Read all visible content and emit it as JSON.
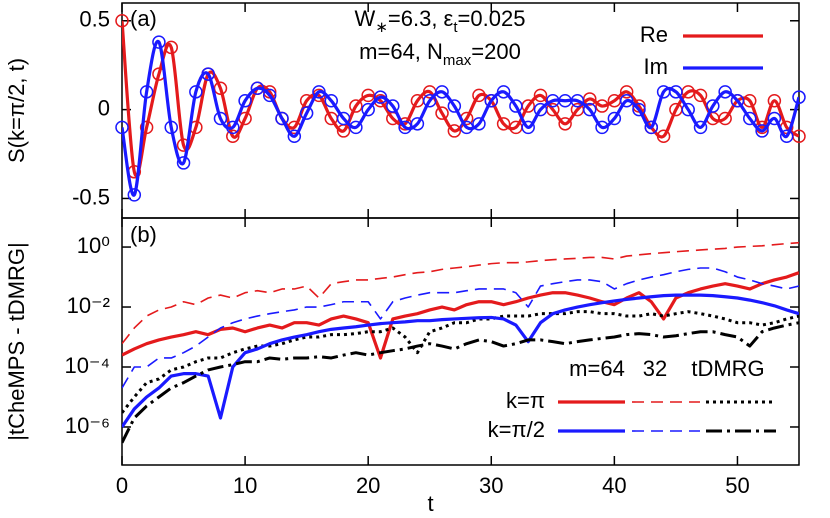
{
  "chart_data": [
    {
      "type": "line",
      "ylabel": "S(k=π/2, t)",
      "xlim": [
        0,
        55
      ],
      "ylim": [
        -0.61,
        0.6
      ],
      "yticks": [
        -0.5,
        0,
        0.5
      ],
      "xticks": [
        0,
        10,
        20,
        30,
        40,
        50
      ],
      "legend_corner": "top-right",
      "smooth": true,
      "annotations": [
        [
          {
            "text": "(a)"
          }
        ],
        [
          {
            "text": "W"
          },
          {
            "text": "∗",
            "sub": true
          },
          {
            "text": "=6.3, ε"
          },
          {
            "text": "t",
            "sub": true
          },
          {
            "text": "=0.025"
          }
        ],
        [
          {
            "text": "m=64, N"
          },
          {
            "text": "max",
            "sub": true
          },
          {
            "text": "=200"
          }
        ]
      ],
      "x": [
        0,
        1,
        2,
        3,
        4,
        5,
        6,
        7,
        8,
        9,
        10,
        11,
        12,
        13,
        14,
        15,
        16,
        17,
        18,
        19,
        20,
        21,
        22,
        23,
        24,
        25,
        26,
        27,
        28,
        29,
        30,
        31,
        32,
        33,
        34,
        35,
        36,
        37,
        38,
        39,
        40,
        41,
        42,
        43,
        44,
        45,
        46,
        47,
        48,
        49,
        50,
        51,
        52,
        53,
        54,
        55
      ],
      "series": [
        {
          "name": "Re",
          "color": "#e41a1c",
          "marker": "circle",
          "values": [
            0.5,
            -0.35,
            -0.1,
            0.2,
            0.35,
            -0.2,
            -0.1,
            0.2,
            0.12,
            -0.15,
            -0.05,
            0.12,
            0.1,
            -0.05,
            -0.1,
            0.05,
            0.08,
            -0.05,
            -0.12,
            0.02,
            0.08,
            0.05,
            -0.05,
            -0.08,
            0.05,
            0.1,
            -0.02,
            -0.12,
            -0.05,
            0.08,
            0.05,
            -0.08,
            -0.1,
            0.02,
            0.08,
            0,
            -0.08,
            0,
            0.06,
            0.02,
            0.05,
            0.1,
            0.02,
            -0.1,
            -0.15,
            0,
            0.1,
            0.08,
            -0.05,
            -0.05,
            0.05,
            0.05,
            -0.1,
            0.05,
            -0.1,
            -0.15
          ]
        },
        {
          "name": "Im",
          "color": "#1a1aff",
          "marker": "circle",
          "values": [
            -0.1,
            -0.48,
            0.1,
            0.38,
            -0.1,
            -0.3,
            0.1,
            0.2,
            -0.05,
            -0.1,
            0.05,
            0.12,
            0.08,
            -0.05,
            -0.15,
            -0.02,
            0.1,
            0.05,
            -0.05,
            -0.1,
            0,
            0.07,
            0.02,
            -0.1,
            -0.08,
            0.05,
            0.1,
            0.02,
            -0.1,
            -0.08,
            0.05,
            0.1,
            0.02,
            -0.1,
            0,
            0.05,
            0.05,
            0.05,
            0,
            -0.1,
            -0.05,
            0.05,
            0,
            -0.1,
            0.1,
            0.1,
            0,
            -0.1,
            0.02,
            0.1,
            0.05,
            -0.05,
            -0.12,
            -0.05,
            -0.15,
            0.07
          ]
        }
      ]
    },
    {
      "type": "line",
      "ylabel": "|tCheMPS - tDMRG|",
      "xlabel": "t",
      "yscale": "log",
      "xlim": [
        0,
        55
      ],
      "ylim": [
        5.4e-08,
        9.3
      ],
      "yticks": [
        {
          "value": 1e-06,
          "label": "10⁻⁶"
        },
        {
          "value": 0.0001,
          "label": "10⁻⁴"
        },
        {
          "value": 0.01,
          "label": "10⁻²"
        },
        {
          "value": 1,
          "label": "10⁰"
        }
      ],
      "xticks": [
        0,
        10,
        20,
        30,
        40,
        50
      ],
      "annotations": [
        [
          {
            "text": "(b)"
          }
        ]
      ],
      "legend": {
        "columns": [
          "m=64",
          "32",
          "tDMRG"
        ]
      },
      "legend_corner": "bottom-right",
      "x": [
        0,
        1,
        2,
        3,
        4,
        5,
        6,
        7,
        8,
        9,
        10,
        11,
        12,
        13,
        14,
        15,
        16,
        17,
        18,
        19,
        20,
        21,
        22,
        23,
        24,
        25,
        26,
        27,
        28,
        29,
        30,
        31,
        32,
        33,
        34,
        35,
        36,
        37,
        38,
        39,
        40,
        41,
        42,
        43,
        44,
        45,
        46,
        47,
        48,
        49,
        50,
        51,
        52,
        53,
        54,
        55
      ],
      "series": [
        {
          "name": "k=π",
          "lines": [
            {
              "color": "#e41a1c",
              "dash": "solid",
              "values": [
                0.00025,
                0.0004,
                0.0006,
                0.0008,
                0.001,
                0.0012,
                0.0015,
                0.0012,
                0.0018,
                0.002,
                0.0015,
                0.002,
                0.0025,
                0.002,
                0.003,
                0.003,
                0.0025,
                0.004,
                0.005,
                0.004,
                0.003,
                0.0002,
                0.004,
                0.005,
                0.006,
                0.008,
                0.01,
                0.008,
                0.012,
                0.015,
                0.015,
                0.012,
                0.015,
                0.02,
                0.025,
                0.03,
                0.03,
                0.025,
                0.02,
                0.015,
                0.012,
                0.02,
                0.03,
                0.015,
                0.004,
                0.02,
                0.03,
                0.04,
                0.05,
                0.06,
                0.05,
                0.04,
                0.06,
                0.08,
                0.1,
                0.14
              ]
            },
            {
              "color": "#e41a1c",
              "dash": "dashed",
              "values": [
                0.0006,
                0.002,
                0.005,
                0.008,
                0.01,
                0.015,
                0.012,
                0.02,
                0.025,
                0.02,
                0.03,
                0.035,
                0.03,
                0.04,
                0.04,
                0.05,
                0.02,
                0.06,
                0.07,
                0.08,
                0.08,
                0.09,
                0.1,
                0.12,
                0.14,
                0.15,
                0.18,
                0.2,
                0.22,
                0.25,
                0.28,
                0.3,
                0.3,
                0.32,
                0.35,
                0.38,
                0.4,
                0.42,
                0.45,
                0.45,
                0.4,
                0.5,
                0.55,
                0.6,
                0.65,
                0.7,
                0.75,
                0.8,
                0.85,
                0.9,
                1.0,
                1.05,
                1.1,
                1.2,
                1.3,
                1.4
              ]
            },
            {
              "color": "#000000",
              "dash": "dotted",
              "values": [
                3e-06,
                1e-05,
                3e-05,
                4e-05,
                8e-05,
                0.0001,
                0.00015,
                0.0002,
                0.0002,
                0.0003,
                0.0004,
                0.0005,
                0.0005,
                0.0006,
                0.0008,
                0.001,
                0.001,
                0.0012,
                0.0012,
                0.0013,
                0.0015,
                0.0015,
                0.002,
                0.001,
                0.0003,
                0.0015,
                0.002,
                0.003,
                0.003,
                0.004,
                0.004,
                0.005,
                0.005,
                0.005,
                0.006,
                0.006,
                0.006,
                0.007,
                0.007,
                0.006,
                0.006,
                0.005,
                0.005,
                0.006,
                0.005,
                0.006,
                0.007,
                0.006,
                0.005,
                0.004,
                0.003,
                0.003,
                0.0025,
                0.003,
                0.004,
                0.005
              ]
            }
          ]
        },
        {
          "name": "k=π/2",
          "lines": [
            {
              "color": "#1a1aff",
              "dash": "solid",
              "values": [
                1e-06,
                4e-06,
                1e-05,
                2e-05,
                5e-05,
                6e-05,
                6e-05,
                5e-05,
                2e-06,
                0.0001,
                0.0003,
                0.0004,
                0.0006,
                0.0008,
                0.001,
                0.0012,
                0.0015,
                0.0018,
                0.002,
                0.0022,
                0.0025,
                0.0028,
                0.003,
                0.0032,
                0.0035,
                0.0035,
                0.0038,
                0.004,
                0.0042,
                0.0044,
                0.0045,
                0.004,
                0.0025,
                0.0007,
                0.003,
                0.006,
                0.008,
                0.01,
                0.012,
                0.014,
                0.016,
                0.018,
                0.02,
                0.022,
                0.024,
                0.025,
                0.025,
                0.025,
                0.024,
                0.022,
                0.02,
                0.017,
                0.014,
                0.011,
                0.008,
                0.006
              ]
            },
            {
              "color": "#1a1aff",
              "dash": "dashed",
              "values": [
                2e-05,
                0.0001,
                0.0001,
                0.0002,
                0.0002,
                0.0003,
                0.0005,
                0.001,
                0.002,
                0.003,
                0.004,
                0.005,
                0.006,
                0.007,
                0.008,
                0.01,
                0.01,
                0.012,
                0.015,
                0.015,
                0.015,
                0.004,
                0.015,
                0.02,
                0.025,
                0.03,
                0.03,
                0.03,
                0.035,
                0.04,
                0.04,
                0.04,
                0.03,
                0.01,
                0.05,
                0.06,
                0.07,
                0.08,
                0.08,
                0.07,
                0.04,
                0.06,
                0.08,
                0.1,
                0.12,
                0.15,
                0.18,
                0.2,
                0.2,
                0.15,
                0.1,
                0.08,
                0.06,
                0.05,
                0.04,
                0.05
              ]
            },
            {
              "color": "#000000",
              "dash": "dashdot",
              "values": [
                3e-07,
                2e-06,
                5e-06,
                1e-05,
                2e-05,
                3e-05,
                5e-05,
                8e-05,
                0.0001,
                0.00012,
                0.00015,
                0.00015,
                0.0002,
                0.00018,
                0.0002,
                0.0002,
                0.00022,
                0.0002,
                0.00025,
                0.0003,
                0.00025,
                0.0003,
                0.00035,
                0.0004,
                0.0005,
                0.0006,
                0.0005,
                0.0004,
                0.0006,
                0.0008,
                0.0007,
                0.0005,
                0.0006,
                0.0008,
                0.0008,
                0.0007,
                0.0006,
                0.0007,
                0.0008,
                0.0009,
                0.001,
                0.0012,
                0.0013,
                0.0012,
                0.001,
                0.0011,
                0.0013,
                0.0015,
                0.0015,
                0.0012,
                0.001,
                0.0005,
                0.0015,
                0.002,
                0.0025,
                0.003
              ]
            }
          ]
        }
      ]
    }
  ]
}
